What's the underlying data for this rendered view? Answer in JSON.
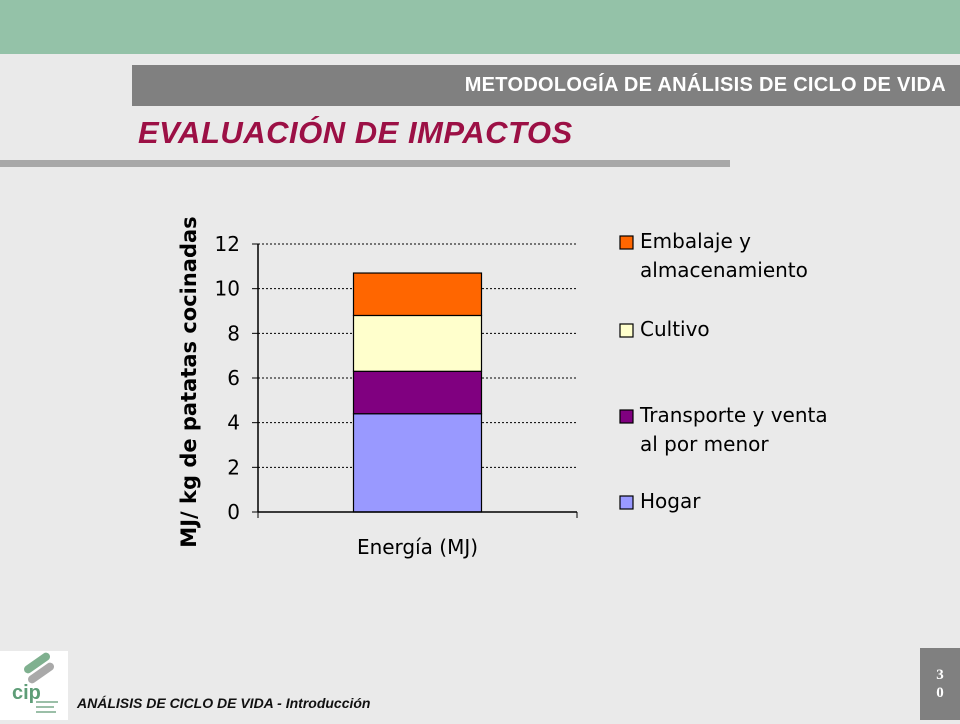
{
  "header": {
    "band_title": "METODOLOGÍA DE ANÁLISIS DE CICLO DE VIDA",
    "page_title": "EVALUACIÓN DE IMPACTOS"
  },
  "footer": {
    "text": "ANÁLISIS DE CICLO DE VIDA - Introducción",
    "page_digits": [
      "3",
      "0"
    ],
    "logo_text": "cip"
  },
  "colors": {
    "top_bar": "#94c2a8",
    "title": "#9c1045",
    "band": "#808080"
  },
  "chart_data": {
    "type": "bar",
    "stacked": true,
    "categories": [
      "Energía (MJ)"
    ],
    "ylabel": "MJ/ kg de patatas cocinadas",
    "xlabel": "",
    "ylim": [
      0,
      12
    ],
    "yticks": [
      0,
      2,
      4,
      6,
      8,
      10,
      12
    ],
    "grid": "horizontal dotted",
    "legend_position": "right",
    "series": [
      {
        "name": "Hogar",
        "values": [
          4.4
        ],
        "color": "#9999ff"
      },
      {
        "name": "Transporte y venta al por menor",
        "values": [
          1.9
        ],
        "color": "#800080"
      },
      {
        "name": "Cultivo",
        "values": [
          2.5
        ],
        "color": "#ffffcc"
      },
      {
        "name": "Embalaje y almacenamiento",
        "values": [
          1.9
        ],
        "color": "#ff6600"
      }
    ],
    "legend_order": [
      {
        "series": 3,
        "lines": [
          "Embalaje y",
          "almacenamiento"
        ]
      },
      {
        "series": 2,
        "lines": [
          "Cultivo"
        ]
      },
      {
        "series": 1,
        "lines": [
          "Transporte y venta",
          "al por menor"
        ]
      },
      {
        "series": 0,
        "lines": [
          "Hogar"
        ]
      }
    ]
  }
}
